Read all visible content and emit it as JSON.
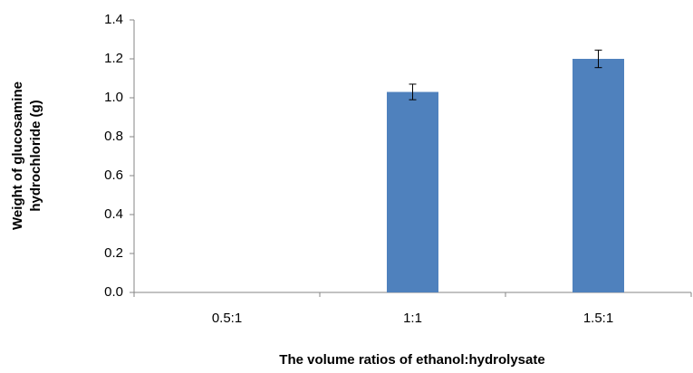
{
  "chart_data": {
    "type": "bar",
    "ylabel": [
      "Weight of glucosamine",
      "hydrochloride (g)"
    ],
    "xlabel": "The volume ratios of ethanol:hydrolysate",
    "categories": [
      "0.5:1",
      "1:1",
      "1.5:1"
    ],
    "values": [
      0,
      1.03,
      1.2
    ],
    "errors": [
      null,
      0.04,
      0.045
    ],
    "color": "#4f81bd",
    "ylim": [
      0,
      1.4
    ],
    "yticks": [
      {
        "value": 0,
        "label": "0.0"
      },
      0.2,
      0.4,
      0.6,
      0.8,
      {
        "value": 1,
        "label": "1.0"
      },
      1.2,
      1.4
    ],
    "grid": false
  }
}
